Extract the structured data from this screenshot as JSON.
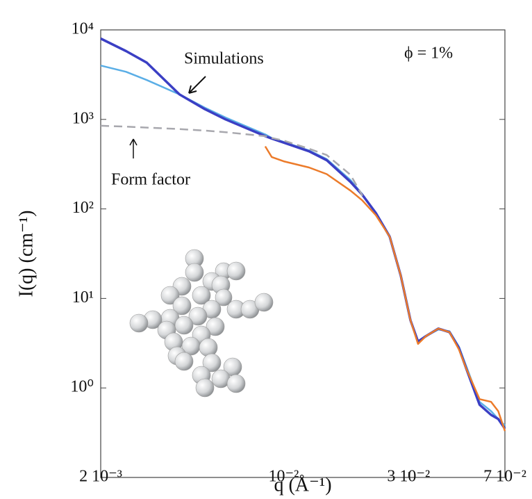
{
  "chart_data": {
    "type": "line",
    "xlabel": "q (Å⁻¹)",
    "ylabel": "I(q) (cm⁻¹)",
    "annotations": [
      "Simulations",
      "Form factor",
      "ϕ = 1%"
    ],
    "xscale": "log",
    "yscale": "log",
    "xlim": [
      0.002,
      0.07
    ],
    "ylim": [
      0.1,
      10000
    ],
    "xticks": [
      {
        "value": 0.002,
        "label": "2 10⁻³"
      },
      {
        "value": 0.01,
        "label": "10⁻²"
      },
      {
        "value": 0.03,
        "label": "3 10⁻²"
      },
      {
        "value": 0.07,
        "label": "7 10⁻²"
      }
    ],
    "yticks": [
      {
        "value": 1,
        "label": "10⁰"
      },
      {
        "value": 10,
        "label": "10¹"
      },
      {
        "value": 100,
        "label": "10²"
      },
      {
        "value": 1000,
        "label": "10³"
      },
      {
        "value": 10000,
        "label": "10⁴"
      }
    ],
    "x": [
      0.002,
      0.0025,
      0.003,
      0.004,
      0.005,
      0.006,
      0.0085,
      0.009,
      0.01,
      0.0125,
      0.0146,
      0.018,
      0.02,
      0.0225,
      0.0254,
      0.028,
      0.0305,
      0.0326,
      0.035,
      0.039,
      0.043,
      0.0467,
      0.05,
      0.056,
      0.062,
      0.066,
      0.07
    ],
    "series": [
      {
        "color": "#5aaee6",
        "style": "solid",
        "values": [
          4000,
          3400,
          2750,
          1900,
          1350,
          1050,
          680,
          620,
          560,
          450,
          360,
          210,
          145,
          90,
          49,
          18,
          5.7,
          3.3,
          3.8,
          4.5,
          4.3,
          2.9,
          1.7,
          0.7,
          0.55,
          0.45,
          0.38
        ]
      },
      {
        "color": "#3b3fc4",
        "style": "solid",
        "values": [
          8000,
          5800,
          4300,
          1900,
          1300,
          1000,
          650,
          610,
          550,
          440,
          350,
          200,
          143,
          90,
          49,
          18,
          5.7,
          3.3,
          3.8,
          4.6,
          4.2,
          2.8,
          1.6,
          0.65,
          0.5,
          0.45,
          0.35
        ]
      },
      {
        "color": "#a8a8ae",
        "style": "dashed",
        "values": [
          850,
          830,
          810,
          780,
          750,
          720,
          650,
          620,
          580,
          470,
          400,
          240,
          140,
          null,
          null,
          null,
          null,
          null,
          null,
          null,
          null,
          null,
          null,
          null,
          null,
          null,
          null
        ]
      },
      {
        "color": "#ec7b2a",
        "style": "solid",
        "values": [
          null,
          null,
          null,
          null,
          null,
          null,
          500,
          380,
          340,
          290,
          245,
          160,
          124,
          85,
          49,
          18,
          5.7,
          3.1,
          3.8,
          4.6,
          4.2,
          2.7,
          1.6,
          0.75,
          0.7,
          0.55,
          0.33
        ]
      }
    ]
  }
}
